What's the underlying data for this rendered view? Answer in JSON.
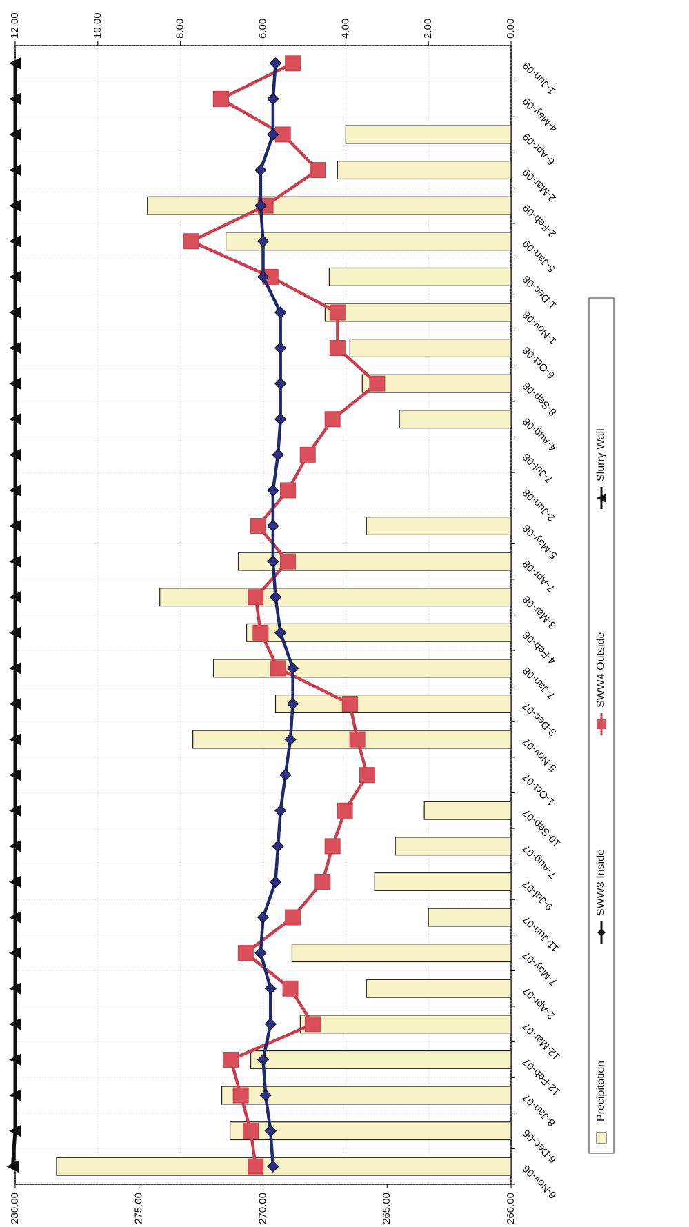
{
  "chart_data": {
    "type": "bar+line",
    "orientation": "rotated-90",
    "categories": [
      "6-Nov-06",
      "6-Dec-06",
      "8-Jan-07",
      "12-Feb-07",
      "12-Mar-07",
      "2-Apr-07",
      "7-May-07",
      "11-Jun-07",
      "9-Jul-07",
      "7-Aug-07",
      "10-Sep-07",
      "1-Oct-07",
      "5-Nov-07",
      "3-Dec-07",
      "7-Jan-08",
      "4-Feb-08",
      "3-Mar-08",
      "7-Apr-08",
      "5-May-08",
      "2-Jun-08",
      "7-Jul-08",
      "4-Aug-08",
      "8-Sep-08",
      "6-Oct-08",
      "1-Nov-08",
      "1-Dec-08",
      "5-Jan-09",
      "2-Feb-09",
      "2-Mar-09",
      "6-Apr-09",
      "4-May-09",
      "1-Jun-09"
    ],
    "left_axis": {
      "ticks": [
        "260.00",
        "265.00",
        "270.00",
        "275.00",
        "280.00"
      ],
      "range": [
        260,
        280
      ]
    },
    "right_axis": {
      "ticks": [
        "0.00",
        "2.00",
        "4.00",
        "6.00",
        "8.00",
        "10.00",
        "12.00"
      ],
      "range": [
        0,
        12
      ]
    },
    "series": [
      {
        "name": "Precipitation",
        "kind": "bar",
        "axis": "right",
        "color": "#f7f3c6",
        "values": [
          11.0,
          6.8,
          7.0,
          6.3,
          5.1,
          3.5,
          5.3,
          2.0,
          3.3,
          2.8,
          2.1,
          0,
          7.7,
          5.7,
          7.2,
          6.4,
          8.5,
          6.6,
          3.5,
          0,
          0,
          2.7,
          3.6,
          3.9,
          4.5,
          4.4,
          6.9,
          8.8,
          4.2,
          4.0,
          0,
          0
        ]
      },
      {
        "name": "SWW3 Inside",
        "kind": "line",
        "axis": "left",
        "color": "#111111",
        "values": [
          269.6,
          269.7,
          269.9,
          270.0,
          269.7,
          269.7,
          270.1,
          270.0,
          269.5,
          269.4,
          269.3,
          269.1,
          268.9,
          268.8,
          268.8,
          269.3,
          269.5,
          269.6,
          269.6,
          269.6,
          269.4,
          269.3,
          269.3,
          269.3,
          269.3,
          270.0,
          270.0,
          270.1,
          270.1,
          269.6,
          269.6,
          269.5
        ]
      },
      {
        "name": "SWW4 Outside",
        "kind": "line",
        "axis": "left",
        "color": "#c8404f",
        "values": [
          270.3,
          270.5,
          270.9,
          271.3,
          268.0,
          268.9,
          270.7,
          268.8,
          267.6,
          267.2,
          266.7,
          265.8,
          266.2,
          266.5,
          269.4,
          270.1,
          270.3,
          269.0,
          270.2,
          269.0,
          268.2,
          267.2,
          265.4,
          267.0,
          267.0,
          269.7,
          272.9,
          269.9,
          267.8,
          269.2,
          271.7,
          268.8
        ]
      },
      {
        "name": "Slurry Wall",
        "kind": "line",
        "axis": "left",
        "color": "#111111",
        "values": [
          280.1,
          280.0,
          280.0,
          280.0,
          280.0,
          280.0,
          280.0,
          280.0,
          280.0,
          280.0,
          280.0,
          280.0,
          280.0,
          280.0,
          280.0,
          280.0,
          280.0,
          280.0,
          280.0,
          280.0,
          280.0,
          280.0,
          280.0,
          280.0,
          280.0,
          280.0,
          280.0,
          280.0,
          280.0,
          280.0,
          280.0,
          280.0
        ]
      }
    ],
    "grid": true,
    "legend": [
      "Precipitation",
      "SWW3 Inside",
      "SWW4 Outside",
      "Slurry Wall"
    ],
    "legend_placement": "right"
  }
}
